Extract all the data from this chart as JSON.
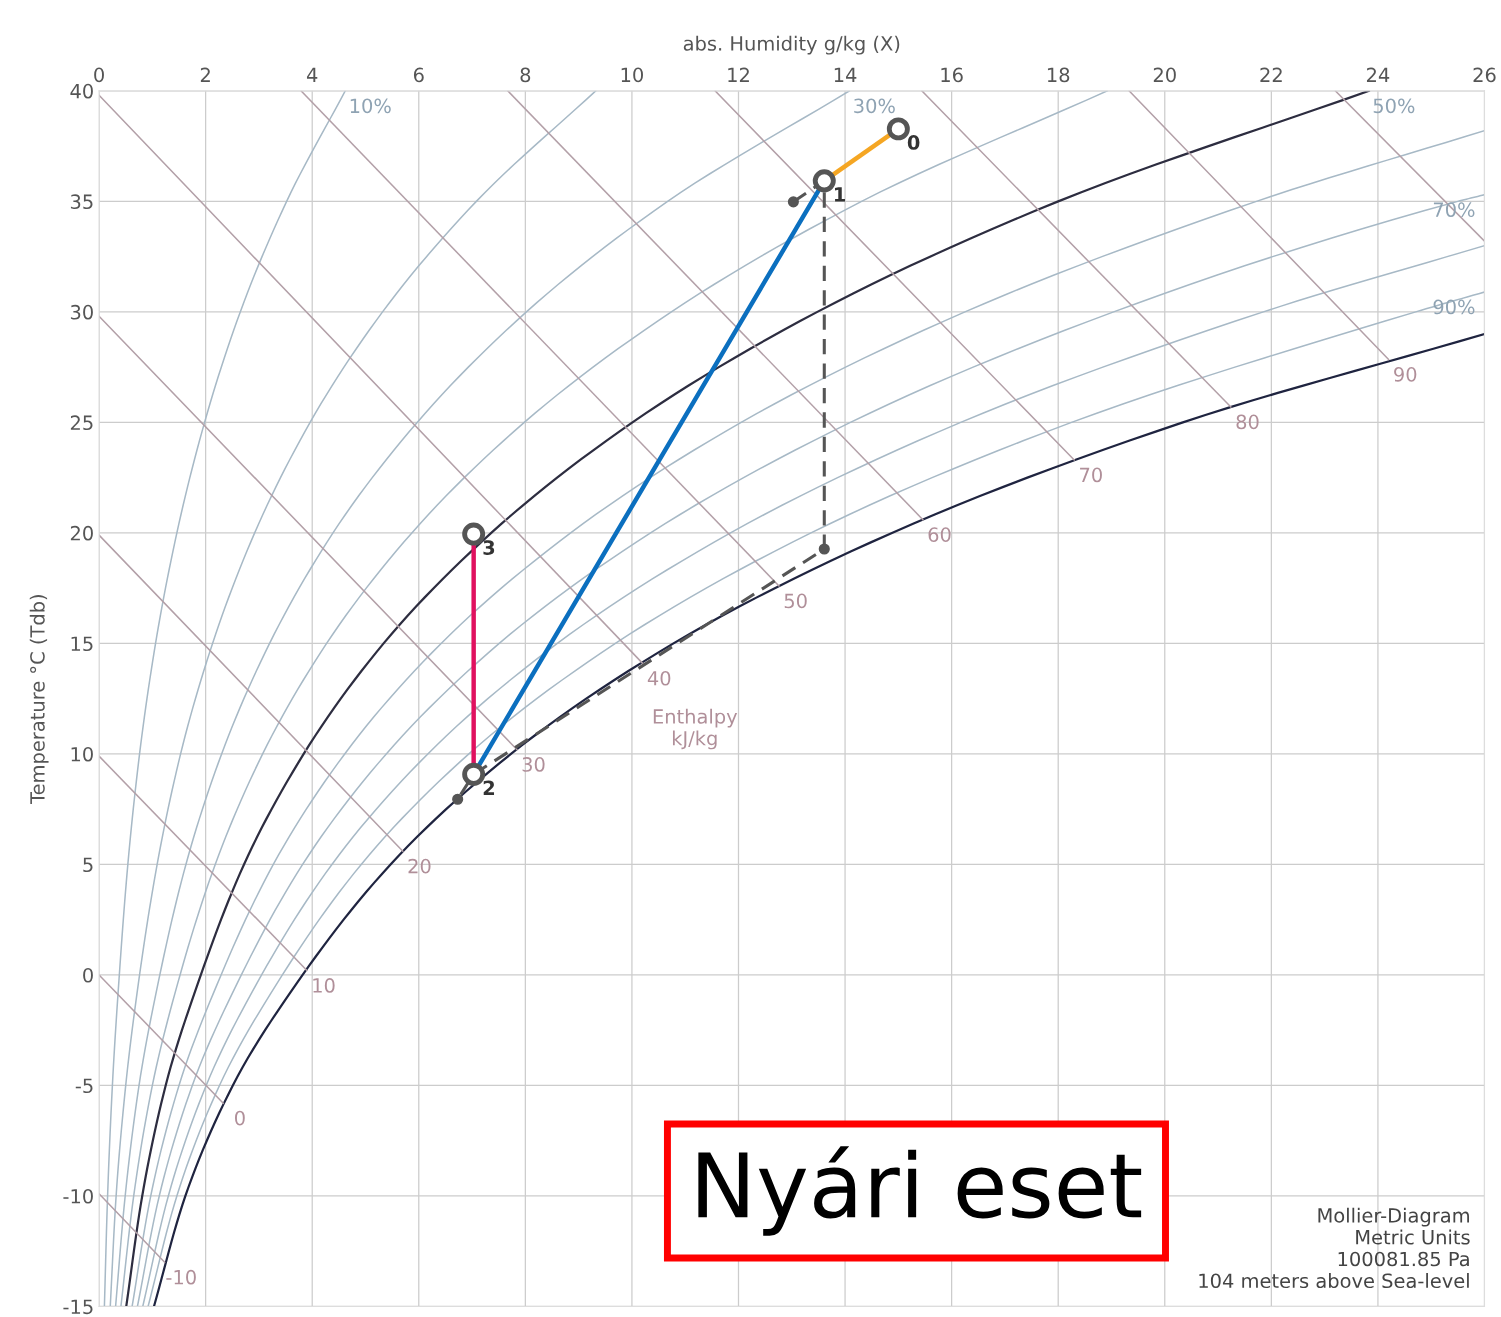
{
  "chart_data": {
    "type": "line",
    "xlabel": "abs. Humidity g/kg (X)",
    "ylabel": "Temperature °C (Tdb)",
    "xlim": [
      0,
      26
    ],
    "xticks": [
      0,
      2,
      4,
      6,
      8,
      10,
      12,
      14,
      16,
      18,
      20,
      22,
      24,
      26
    ],
    "ylim": [
      -15,
      40
    ],
    "yticks": [
      -15,
      -10,
      -5,
      0,
      5,
      10,
      15,
      20,
      25,
      30,
      35,
      40
    ],
    "grid": true,
    "marker": "none",
    "line_style": "solid",
    "series": [
      {
        "color": "#a7b9c6",
        "x": [
          0.1,
          0.16,
          0.25,
          0.38,
          0.54,
          0.76,
          1.06,
          1.46,
          1.98,
          2.65,
          3.52,
          4.62
        ],
        "values": [
          -15,
          -10,
          -5,
          0,
          5,
          10,
          15,
          20,
          25,
          30,
          35,
          40
        ]
      },
      {
        "color": "#a7b9c6",
        "x": [
          0.21,
          0.32,
          0.5,
          0.76,
          1.09,
          1.53,
          2.13,
          2.92,
          3.96,
          5.32,
          7.08,
          9.32
        ],
        "values": [
          -15,
          -10,
          -5,
          0,
          5,
          10,
          15,
          20,
          25,
          30,
          35,
          40
        ]
      },
      {
        "color": "#a7b9c6",
        "x": [
          0.31,
          0.49,
          0.75,
          1.14,
          1.63,
          2.3,
          3.2,
          4.39,
          5.97,
          8.02,
          10.67,
          14.08
        ],
        "values": [
          -15,
          -10,
          -5,
          0,
          5,
          10,
          15,
          20,
          25,
          30,
          35,
          40
        ]
      },
      {
        "color": "#a7b9c6",
        "x": [
          0.41,
          0.65,
          1.0,
          1.52,
          2.18,
          3.07,
          4.27,
          5.87,
          7.98,
          10.74,
          14.31,
          18.92
        ],
        "values": [
          -15,
          -10,
          -5,
          0,
          5,
          10,
          15,
          20,
          25,
          30,
          35,
          40
        ]
      },
      {
        "color": "#2d2d40",
        "x": [
          0.51,
          0.81,
          1.25,
          1.91,
          2.72,
          3.84,
          5.34,
          7.36,
          10.01,
          13.48,
          18.0,
          23.83
        ],
        "values": [
          -15,
          -10,
          -5,
          0,
          5,
          10,
          15,
          20,
          25,
          30,
          35,
          40
        ]
      },
      {
        "color": "#a7b9c6",
        "x": [
          0.62,
          0.97,
          1.5,
          2.29,
          3.27,
          4.61,
          6.42,
          8.85,
          12.05,
          16.25,
          21.72,
          26
        ],
        "values": [
          -15,
          -10,
          -5,
          0,
          5,
          10,
          15,
          20,
          25,
          30,
          35,
          38.2
        ]
      },
      {
        "color": "#a7b9c6",
        "x": [
          0.72,
          1.13,
          1.75,
          2.67,
          3.82,
          5.39,
          7.51,
          10.35,
          14.1,
          19.04,
          25.5,
          26
        ],
        "values": [
          -15,
          -10,
          -5,
          0,
          5,
          10,
          15,
          20,
          25,
          30,
          35,
          35.3
        ]
      },
      {
        "color": "#a7b9c6",
        "x": [
          0.82,
          1.3,
          2.01,
          3.05,
          4.37,
          6.17,
          8.6,
          11.85,
          16.17,
          21.85,
          26
        ],
        "values": [
          -15,
          -10,
          -5,
          0,
          5,
          10,
          15,
          20,
          25,
          30,
          33
        ]
      },
      {
        "color": "#a7b9c6",
        "x": [
          0.92,
          1.46,
          2.26,
          3.44,
          4.92,
          6.94,
          9.69,
          13.36,
          18.25,
          24.71,
          26
        ],
        "values": [
          -15,
          -10,
          -5,
          0,
          5,
          10,
          15,
          20,
          25,
          30,
          30.9
        ]
      },
      {
        "color": "#1f2440",
        "x": [
          1.03,
          1.62,
          2.51,
          3.82,
          5.47,
          7.73,
          10.78,
          14.88,
          20.34,
          26
        ],
        "values": [
          -15,
          -10,
          -5,
          0,
          5,
          10,
          15,
          20,
          25,
          29
        ]
      },
      {
        "color": "#b3a0a8",
        "x": [
          0,
          1.23
        ],
        "values": [
          -9.9,
          -13
        ]
      },
      {
        "color": "#b3a0a8",
        "x": [
          0,
          2.33
        ],
        "values": [
          0,
          -5.8
        ]
      },
      {
        "color": "#b3a0a8",
        "x": [
          0,
          3.9
        ],
        "values": [
          9.9,
          0.2
        ]
      },
      {
        "color": "#b3a0a8",
        "x": [
          0,
          5.7
        ],
        "values": [
          19.9,
          5.6
        ]
      },
      {
        "color": "#b3a0a8",
        "x": [
          0,
          7.84
        ],
        "values": [
          29.8,
          10.2
        ]
      },
      {
        "color": "#b3a0a8",
        "x": [
          0,
          10.2
        ],
        "values": [
          39.8,
          14.1
        ]
      },
      {
        "color": "#b3a0a8",
        "x": [
          3.79,
          12.76
        ],
        "values": [
          40,
          17.6
        ]
      },
      {
        "color": "#b3a0a8",
        "x": [
          7.67,
          15.46
        ],
        "values": [
          40,
          20.6
        ]
      },
      {
        "color": "#b3a0a8",
        "x": [
          11.56,
          18.3
        ],
        "values": [
          40,
          23.3
        ]
      },
      {
        "color": "#b3a0a8",
        "x": [
          15.44,
          21.24
        ],
        "values": [
          40,
          25.7
        ]
      },
      {
        "color": "#b3a0a8",
        "x": [
          19.33,
          24.2
        ],
        "values": [
          40,
          27.85
        ]
      },
      {
        "color": "#b3a0a8",
        "x": [
          23.2,
          26
        ],
        "values": [
          40,
          33.2
        ]
      },
      {
        "color": "#555555",
        "line_style": "dashed",
        "marker": "circle",
        "x": [
          13.03,
          13.61,
          13.61,
          7.03,
          6.73
        ],
        "values": [
          34.98,
          35.93,
          19.27,
          9.08,
          7.95
        ]
      },
      {
        "color": "#f5a623",
        "x": [
          15.0,
          13.61
        ],
        "values": [
          38.28,
          35.93
        ]
      },
      {
        "color": "#0b6fbf",
        "x": [
          13.61,
          7.03
        ],
        "values": [
          35.93,
          9.08
        ]
      },
      {
        "color": "#e0115f",
        "x": [
          7.03,
          7.03
        ],
        "values": [
          19.95,
          9.08
        ]
      },
      {
        "type": "scatter",
        "marker": "circle",
        "color": "#555555",
        "x": [
          15.0,
          13.61,
          7.03,
          7.03
        ],
        "values": [
          38.28,
          35.93,
          9.08,
          19.95
        ]
      }
    ],
    "annotations": [
      {
        "text": "0",
        "x": 15.0,
        "y": 38.28
      },
      {
        "text": "1",
        "x": 13.61,
        "y": 35.93
      },
      {
        "text": "2",
        "x": 7.03,
        "y": 9.08
      },
      {
        "text": "3",
        "x": 7.03,
        "y": 19.95
      },
      {
        "text": "10%",
        "x": 4.62,
        "y": 40
      },
      {
        "text": "30%",
        "x": 14.08,
        "y": 40
      },
      {
        "text": "50%",
        "x": 23.83,
        "y": 40
      },
      {
        "text": "70%",
        "x": 26,
        "y": 35.3
      },
      {
        "text": "90%",
        "x": 26,
        "y": 30.9
      },
      {
        "text": "-10",
        "x": 1.23,
        "y": -13
      },
      {
        "text": "0",
        "x": 2.33,
        "y": -5.8
      },
      {
        "text": "10",
        "x": 3.9,
        "y": 0.2
      },
      {
        "text": "20",
        "x": 5.7,
        "y": 5.6
      },
      {
        "text": "30",
        "x": 7.84,
        "y": 10.2
      },
      {
        "text": "40",
        "x": 10.2,
        "y": 14.1
      },
      {
        "text": "50",
        "x": 12.76,
        "y": 17.6
      },
      {
        "text": "60",
        "x": 15.46,
        "y": 20.6
      },
      {
        "text": "70",
        "x": 18.3,
        "y": 23.3
      },
      {
        "text": "80",
        "x": 21.24,
        "y": 25.7
      },
      {
        "text": "90",
        "x": 24.2,
        "y": 27.85
      },
      "Enthalpy\nkJ/kg",
      "Nyári eset",
      "Mollier-Diagram\nMetric Units\n100081.85 Pa\n104 meters above Sea-level"
    ]
  }
}
